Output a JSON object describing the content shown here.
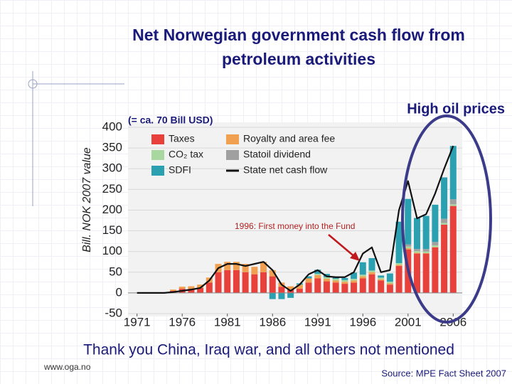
{
  "slide": {
    "title": "Net Norwegian government cash flow from petroleum activities",
    "footer": "Thank you China, Iraq war, and all others not mentioned",
    "website": "www.oga.no",
    "source": "Source: MPE Fact Sheet 2007"
  },
  "chart_data": {
    "type": "bar",
    "stacked": true,
    "y_label": "Bill. NOK 2007 value",
    "annotations": [
      "(= ca. 70 Bill USD)",
      "High oil prices",
      "1996: First money into the Fund"
    ],
    "x": [
      1971,
      1972,
      1973,
      1974,
      1975,
      1976,
      1977,
      1978,
      1979,
      1980,
      1981,
      1982,
      1983,
      1984,
      1985,
      1986,
      1987,
      1988,
      1989,
      1990,
      1991,
      1992,
      1993,
      1994,
      1995,
      1996,
      1997,
      1998,
      1999,
      2000,
      2001,
      2002,
      2003,
      2004,
      2005,
      2006
    ],
    "xlim": [
      1970,
      2007
    ],
    "xticks": [
      1971,
      1976,
      1981,
      1986,
      1991,
      1996,
      2001,
      2006
    ],
    "ylim": [
      -50,
      400
    ],
    "yticks": [
      -50,
      0,
      50,
      100,
      150,
      200,
      250,
      300,
      350,
      400
    ],
    "grid": true,
    "series": [
      {
        "name": "Taxes",
        "color": "#e8413c",
        "values": [
          0,
          0,
          0,
          0,
          5,
          10,
          10,
          12,
          25,
          50,
          55,
          55,
          50,
          45,
          50,
          40,
          15,
          8,
          10,
          25,
          35,
          28,
          25,
          22,
          25,
          35,
          45,
          30,
          20,
          65,
          105,
          95,
          95,
          110,
          165,
          210
        ]
      },
      {
        "name": "Royalty and area fee",
        "color": "#f0a050",
        "values": [
          0,
          0,
          0,
          0,
          3,
          5,
          6,
          8,
          12,
          20,
          20,
          20,
          20,
          18,
          25,
          15,
          10,
          8,
          10,
          10,
          8,
          6,
          5,
          5,
          5,
          5,
          5,
          3,
          3,
          3,
          3,
          2,
          1,
          1,
          0,
          0
        ]
      },
      {
        "name": "CO₂ tax",
        "color": "#a8d8a0",
        "values": [
          0,
          0,
          0,
          0,
          0,
          0,
          0,
          0,
          0,
          0,
          0,
          0,
          0,
          0,
          0,
          0,
          0,
          0,
          0,
          0,
          3,
          4,
          4,
          4,
          4,
          4,
          4,
          4,
          4,
          4,
          4,
          4,
          4,
          4,
          4,
          4
        ]
      },
      {
        "name": "Statoil dividend",
        "color": "#a0a0a0",
        "values": [
          0,
          0,
          0,
          0,
          0,
          0,
          0,
          0,
          0,
          0,
          0,
          0,
          0,
          0,
          0,
          0,
          0,
          0,
          0,
          0,
          0,
          0,
          0,
          0,
          0,
          0,
          0,
          0,
          0,
          0,
          5,
          5,
          6,
          8,
          10,
          12
        ]
      },
      {
        "name": "SDFI",
        "color": "#2ba0b0",
        "values": [
          0,
          0,
          0,
          0,
          0,
          0,
          0,
          0,
          0,
          0,
          0,
          0,
          0,
          0,
          0,
          -15,
          -15,
          -12,
          3,
          5,
          10,
          8,
          5,
          5,
          15,
          30,
          30,
          5,
          20,
          100,
          110,
          75,
          80,
          90,
          100,
          129
        ]
      },
      {
        "name": "State net cash flow",
        "type": "line",
        "color": "#111111",
        "values": [
          0,
          0,
          0,
          0,
          2,
          5,
          8,
          12,
          30,
          60,
          70,
          70,
          65,
          70,
          75,
          55,
          20,
          5,
          20,
          45,
          55,
          40,
          38,
          38,
          50,
          95,
          110,
          50,
          55,
          200,
          270,
          180,
          190,
          240,
          300,
          355
        ]
      }
    ]
  }
}
